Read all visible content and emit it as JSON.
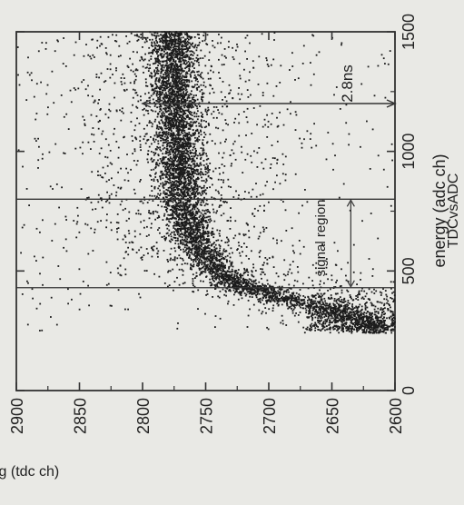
{
  "chart_data": {
    "type": "scatter",
    "title": "TDCvsADC",
    "xlabel": "energy (adc ch)",
    "ylabel": "timing (tdc ch)",
    "xlim": [
      0,
      1500
    ],
    "ylim": [
      2600,
      2900
    ],
    "x_ticks": [
      0,
      500,
      1000,
      1500
    ],
    "y_ticks": [
      2600,
      2650,
      2700,
      2750,
      2800,
      2850,
      2900
    ],
    "x_tick_labels": [
      "0",
      "500",
      "1000",
      "1500"
    ],
    "y_tick_labels": [
      "2600",
      "2650",
      "2700",
      "2750",
      "2800",
      "2850",
      "2900"
    ],
    "grid": false,
    "orientation": "rotated 90 degrees counter-clockwise",
    "signal_region": {
      "x_min": 430,
      "x_max": 800,
      "label": "signal region"
    },
    "resolution_marker": {
      "x": 1200,
      "y_min": 2600,
      "y_max": 2800,
      "label": "2.8ns"
    },
    "locus_description": "dense band near 2770 tdc ch for energy above 500 adc ch, curving down to about 2620 tdc ch at low energy (~300 adc ch)",
    "locus": [
      {
        "x": 280,
        "y": 2620
      },
      {
        "x": 320,
        "y": 2640
      },
      {
        "x": 360,
        "y": 2670
      },
      {
        "x": 400,
        "y": 2700
      },
      {
        "x": 450,
        "y": 2725
      },
      {
        "x": 500,
        "y": 2740
      },
      {
        "x": 600,
        "y": 2755
      },
      {
        "x": 700,
        "y": 2763
      },
      {
        "x": 800,
        "y": 2767
      },
      {
        "x": 1000,
        "y": 2771
      },
      {
        "x": 1200,
        "y": 2774
      },
      {
        "x": 1500,
        "y": 2777
      }
    ]
  }
}
